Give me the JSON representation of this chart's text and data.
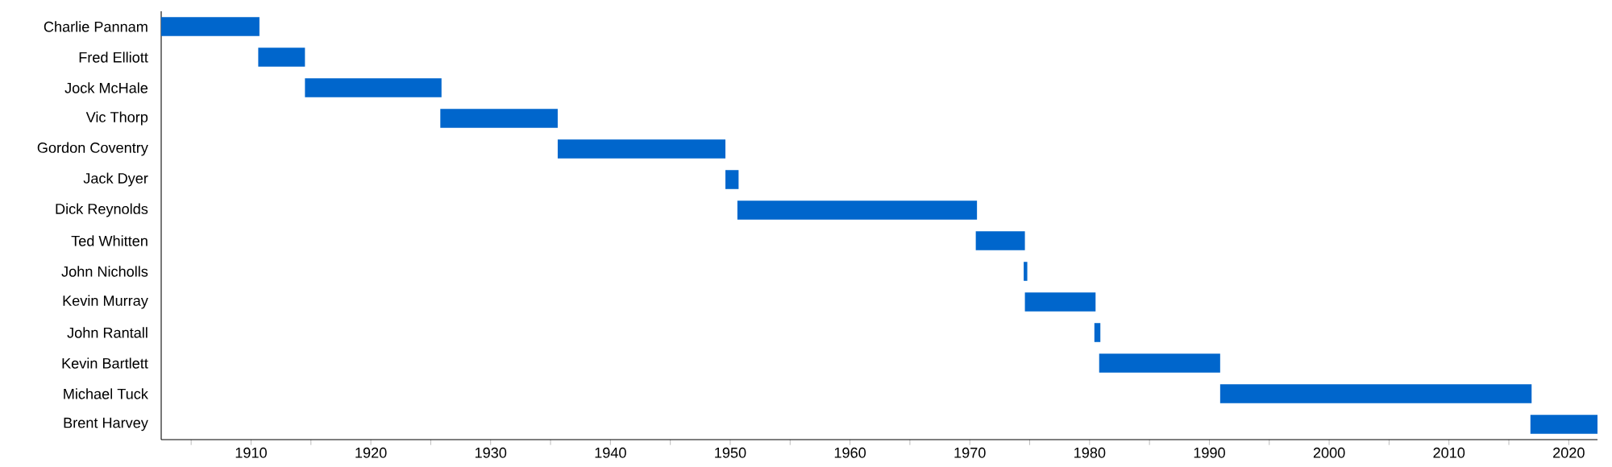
{
  "chart_data": {
    "type": "bar",
    "orientation": "horizontal",
    "categories": [
      "Charlie Pannam",
      "Fred Elliott",
      "Jock McHale",
      "Vic Thorp",
      "Gordon Coventry",
      "Jack Dyer",
      "Dick Reynolds",
      "Ted Whitten",
      "John Nicholls",
      "Kevin Murray",
      "John Rantall",
      "Kevin Bartlett",
      "Michael Tuck",
      "Brent Harvey"
    ],
    "base": [
      1902.5,
      1910.6,
      1914.5,
      1925.8,
      1935.6,
      1949.6,
      1950.6,
      1970.5,
      1974.5,
      1974.6,
      1980.4,
      1980.8,
      1990.9,
      2016.8
    ],
    "values": [
      8.2,
      3.9,
      11.4,
      9.8,
      14.0,
      1.1,
      20.0,
      4.1,
      0.3,
      5.9,
      0.5,
      10.1,
      26.0,
      5.6
    ],
    "color": "#0066cc",
    "xlim": [
      1902.5,
      2022.4
    ],
    "xticks": [
      {
        "value": 1905,
        "label": null
      },
      1910,
      {
        "value": 1915,
        "label": null
      },
      1920,
      {
        "value": 1925,
        "label": null
      },
      1930,
      {
        "value": 1935,
        "label": null
      },
      1940,
      {
        "value": 1945,
        "label": null
      },
      1950,
      {
        "value": 1955,
        "label": null
      },
      1960,
      {
        "value": 1965,
        "label": null
      },
      1970,
      {
        "value": 1975,
        "label": null
      },
      1980,
      {
        "value": 1985,
        "label": null
      },
      1990,
      {
        "value": 1995,
        "label": null
      },
      2000,
      {
        "value": 2005,
        "label": null
      },
      2010,
      {
        "value": 2015,
        "label": null
      },
      2020
    ]
  }
}
